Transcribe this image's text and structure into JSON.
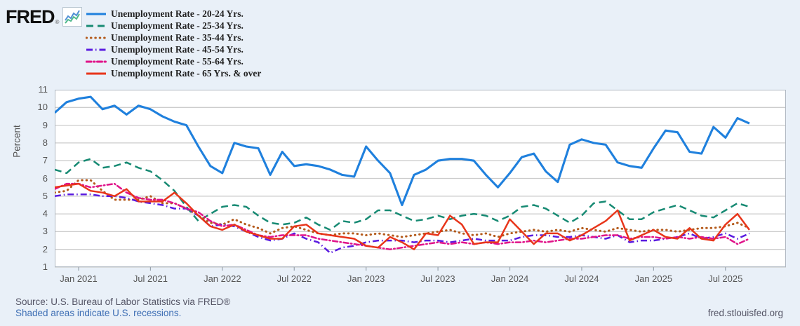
{
  "brand": {
    "logo_text": "FRED",
    "registered_mark": "®",
    "logo_icon": "sparkline-chart-icon"
  },
  "footer": {
    "source_text": "Source: U.S. Bureau of Labor Statistics via FRED®",
    "recession_note": "Shaded areas indicate U.S. recessions.",
    "site_url": "fred.stlouisfed.org"
  },
  "colors": {
    "background": "#e9f0f8",
    "plot_background": "#ffffff",
    "gridline": "#cccccc",
    "plot_border": "#b0b8c2",
    "axis_text": "#555555",
    "legend_text": "#222222",
    "link_blue": "#3d6eb4",
    "logo_icon_blue": "#4f8fd4",
    "logo_icon_green": "#4fb98c"
  },
  "chart_data": {
    "type": "line",
    "title": "",
    "ylabel": "Percent",
    "xlabel": "",
    "ylim": [
      1,
      11
    ],
    "yticks": [
      1,
      2,
      3,
      4,
      5,
      6,
      7,
      8,
      9,
      10,
      11
    ],
    "xtick_labels": [
      "Jan 2021",
      "Jul 2021",
      "Jan 2022",
      "Jul 2022",
      "Jan 2023",
      "Jul 2023",
      "Jan 2024",
      "Jul 2024",
      "Jan 2025",
      "Jul 2025"
    ],
    "frequency": "monthly",
    "start": "Nov 2020",
    "end": "Sep 2025",
    "grid": true,
    "legend_position": "top-left",
    "series": [
      {
        "name": "Unemployment Rate - 20-24 Yrs.",
        "color": "#1f80dd",
        "pattern": "solid",
        "values": [
          9.7,
          10.3,
          10.5,
          10.6,
          9.9,
          10.1,
          9.6,
          10.1,
          9.9,
          9.5,
          9.2,
          9.0,
          7.8,
          6.7,
          6.3,
          8.0,
          7.8,
          7.7,
          6.2,
          7.5,
          6.7,
          6.8,
          6.7,
          6.5,
          6.2,
          6.1,
          7.8,
          7.0,
          6.3,
          4.5,
          6.2,
          6.5,
          7.0,
          7.1,
          7.1,
          7.0,
          6.2,
          5.5,
          6.3,
          7.2,
          7.4,
          6.4,
          5.8,
          7.9,
          8.2,
          8.0,
          7.9,
          6.9,
          6.7,
          6.6,
          7.7,
          8.7,
          8.6,
          7.5,
          7.4,
          8.9,
          8.3,
          9.4,
          9.1
        ]
      },
      {
        "name": "Unemployment Rate - 25-34 Yrs.",
        "color": "#178a73",
        "pattern": "long-dash",
        "values": [
          6.5,
          6.3,
          6.9,
          7.1,
          6.6,
          6.7,
          6.9,
          6.6,
          6.4,
          5.9,
          5.3,
          4.4,
          3.6,
          4.0,
          4.4,
          4.5,
          4.4,
          3.9,
          3.5,
          3.4,
          3.5,
          3.8,
          3.4,
          3.1,
          3.6,
          3.5,
          3.7,
          4.2,
          4.2,
          3.9,
          3.6,
          3.7,
          3.9,
          3.7,
          3.9,
          4.0,
          3.9,
          3.6,
          3.9,
          4.4,
          4.5,
          4.3,
          3.9,
          3.5,
          3.9,
          4.6,
          4.7,
          4.2,
          3.7,
          3.7,
          4.1,
          4.3,
          4.5,
          4.2,
          3.9,
          3.8,
          4.2,
          4.6,
          4.4
        ]
      },
      {
        "name": "Unemployment Rate - 35-44 Yrs.",
        "color": "#b45a1b",
        "pattern": "dot",
        "values": [
          5.2,
          5.3,
          5.9,
          5.9,
          5.3,
          4.8,
          4.8,
          4.8,
          5.0,
          4.6,
          4.6,
          4.3,
          3.9,
          3.5,
          3.4,
          3.7,
          3.4,
          3.2,
          2.9,
          3.2,
          3.3,
          3.1,
          2.9,
          2.8,
          2.9,
          2.9,
          2.8,
          2.9,
          2.8,
          2.7,
          2.8,
          2.9,
          3.0,
          3.1,
          2.9,
          2.8,
          2.9,
          2.7,
          2.9,
          3.0,
          3.1,
          3.0,
          3.1,
          3.0,
          3.2,
          3.1,
          3.0,
          3.2,
          3.1,
          3.0,
          3.1,
          3.1,
          3.0,
          3.1,
          3.2,
          3.2,
          3.3,
          3.5,
          3.2
        ]
      },
      {
        "name": "Unemployment Rate - 45-54 Yrs.",
        "color": "#5a1be0",
        "pattern": "dash-dot",
        "values": [
          5.0,
          5.1,
          5.1,
          5.1,
          5.0,
          5.0,
          4.9,
          4.7,
          4.6,
          4.5,
          4.3,
          4.3,
          3.9,
          3.3,
          3.4,
          3.3,
          3.0,
          2.7,
          2.5,
          2.6,
          2.9,
          2.6,
          2.4,
          1.8,
          2.1,
          2.2,
          2.4,
          2.5,
          2.5,
          2.5,
          2.4,
          2.5,
          2.5,
          2.4,
          2.5,
          2.6,
          2.5,
          2.5,
          2.5,
          2.7,
          2.8,
          2.8,
          2.7,
          2.7,
          2.8,
          2.7,
          2.6,
          2.8,
          2.4,
          2.5,
          2.5,
          2.6,
          2.7,
          2.9,
          2.6,
          2.7,
          2.9,
          2.6,
          2.9
        ]
      },
      {
        "name": "Unemployment Rate - 55-64 Yrs.",
        "color": "#e01389",
        "pattern": "short-dash",
        "values": [
          5.4,
          5.7,
          5.7,
          5.5,
          5.6,
          5.7,
          5.2,
          4.9,
          4.8,
          4.8,
          4.6,
          4.3,
          4.1,
          3.6,
          3.3,
          3.4,
          3.1,
          2.8,
          2.7,
          2.8,
          2.8,
          2.8,
          2.6,
          2.5,
          2.4,
          2.3,
          2.2,
          2.1,
          2.0,
          2.1,
          2.2,
          2.3,
          2.4,
          2.3,
          2.4,
          2.3,
          2.4,
          2.3,
          2.4,
          2.4,
          2.5,
          2.4,
          2.5,
          2.6,
          2.6,
          2.7,
          2.8,
          2.8,
          2.6,
          2.7,
          2.7,
          2.6,
          2.7,
          2.6,
          2.7,
          2.6,
          2.7,
          2.3,
          2.6
        ]
      },
      {
        "name": "Unemployment Rate - 65 Yrs. & over",
        "color": "#e8351a",
        "pattern": "solid",
        "values": [
          5.5,
          5.6,
          5.7,
          5.3,
          5.2,
          5.0,
          5.4,
          4.7,
          4.7,
          4.7,
          5.2,
          4.6,
          3.9,
          3.3,
          3.1,
          3.4,
          3.0,
          2.8,
          2.6,
          2.6,
          3.3,
          3.4,
          2.9,
          2.8,
          2.7,
          2.6,
          2.2,
          2.1,
          2.7,
          2.4,
          2.0,
          2.9,
          2.8,
          3.9,
          3.4,
          2.3,
          2.4,
          2.4,
          3.7,
          3.0,
          2.3,
          2.9,
          2.9,
          2.5,
          2.8,
          3.2,
          3.6,
          4.2,
          2.5,
          2.8,
          3.1,
          2.7,
          2.6,
          3.2,
          2.6,
          2.5,
          3.4,
          4.0,
          3.1
        ]
      }
    ]
  }
}
